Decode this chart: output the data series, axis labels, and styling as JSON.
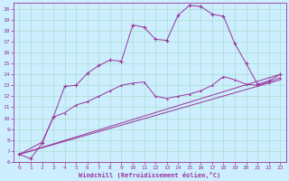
{
  "background_color": "#cceeff",
  "grid_color": "#aaddcc",
  "line_color": "#993399",
  "xlabel": "Windchill (Refroidissement éolien,°C)",
  "xlim": [
    -0.5,
    23.5
  ],
  "ylim": [
    6,
    20.5
  ],
  "xticks": [
    0,
    1,
    2,
    3,
    4,
    5,
    6,
    7,
    8,
    9,
    10,
    11,
    12,
    13,
    14,
    15,
    16,
    17,
    18,
    19,
    20,
    21,
    22,
    23
  ],
  "yticks": [
    6,
    7,
    8,
    9,
    10,
    11,
    12,
    13,
    14,
    15,
    16,
    17,
    18,
    19,
    20
  ],
  "series1_x": [
    0,
    1,
    2,
    3,
    4,
    5,
    6,
    7,
    8,
    9,
    10,
    11,
    12,
    13,
    14,
    15,
    16,
    17,
    18,
    19,
    20,
    21,
    22,
    23
  ],
  "series1_y": [
    6.7,
    6.3,
    7.7,
    10.1,
    12.9,
    13.0,
    14.1,
    14.8,
    15.3,
    15.2,
    18.5,
    18.3,
    17.2,
    17.1,
    19.4,
    20.3,
    20.2,
    19.5,
    19.3,
    16.8,
    15.0,
    13.1,
    13.4,
    14.0
  ],
  "series2_x": [
    0,
    2,
    3,
    4,
    5,
    6,
    7,
    8,
    9,
    10,
    11,
    12,
    13,
    14,
    15,
    16,
    17,
    18,
    19,
    20,
    21,
    22,
    23
  ],
  "series2_y": [
    6.7,
    7.8,
    10.1,
    10.5,
    11.2,
    11.5,
    12.0,
    12.5,
    13.0,
    13.2,
    13.3,
    12.0,
    11.8,
    12.0,
    12.2,
    12.5,
    13.0,
    13.8,
    13.5,
    13.1,
    13.0,
    13.3,
    13.7
  ],
  "series3_x": [
    0,
    23
  ],
  "series3_y": [
    6.7,
    13.5
  ],
  "series4_x": [
    0,
    23
  ],
  "series4_y": [
    6.7,
    14.0
  ]
}
